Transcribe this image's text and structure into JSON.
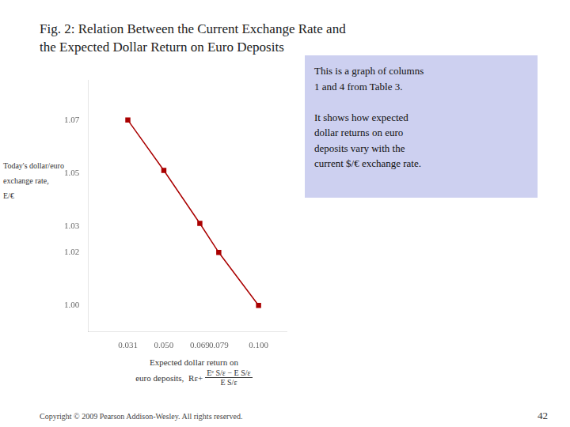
{
  "chart_data": {
    "type": "line",
    "title": "Fig. 2: Relation Between the Current Exchange Rate and\nthe Expected Dollar Return on Euro Deposits",
    "x": [
      0.031,
      0.05,
      0.069,
      0.079,
      0.1
    ],
    "values": [
      1.07,
      1.051,
      1.031,
      1.02,
      1.0
    ],
    "color": "#aa0000",
    "marker": "square",
    "xlim": [
      0.01,
      0.115
    ],
    "ylim": [
      0.99,
      1.085
    ],
    "xticks": [
      0.031,
      {
        "value": 0.05,
        "label": "0.050"
      },
      0.069,
      0.079,
      {
        "value": 0.1,
        "label": "0.100"
      }
    ],
    "yticks": [
      {
        "value": 1.0,
        "label": "1.00"
      },
      1.02,
      1.03,
      1.05,
      1.07
    ],
    "xlabel": [
      "Expected dollar return on",
      "euro deposits, "
    ],
    "xlabel_formula": {
      "prefix": "Rε+",
      "numerator": "Eᵉ S/ε − E S/ε",
      "denominator": "E S/ε"
    },
    "ylabel": "Today's dollar/euro\nexchange rate, \nE/€",
    "annotation": "This is a graph of columns\n1 and 4 from Table 3.\n\nIt shows how expected\ndollar returns on euro\ndeposits vary with the\ncurrent $/€ exchange rate.",
    "footer": "Copyright © 2009 Pearson Addison-Wesley. All rights reserved.",
    "page_number": "42",
    "grid": false
  }
}
